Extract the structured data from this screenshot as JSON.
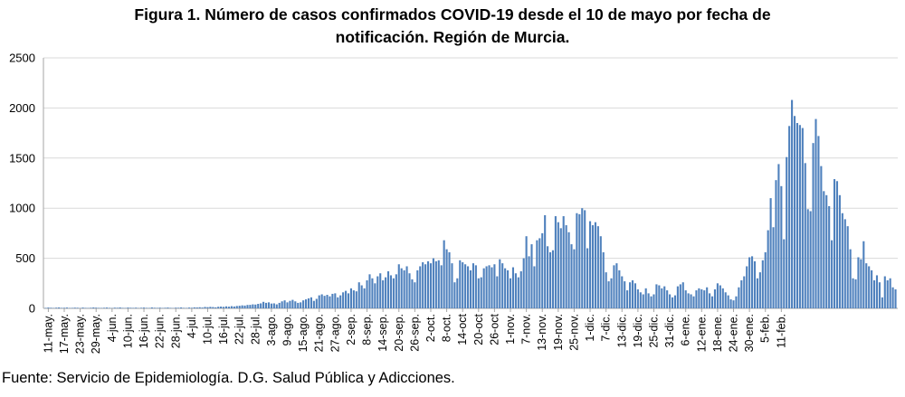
{
  "chart": {
    "title_line1": "Figura 1. Número de casos confirmados COVID-19 desde el 10 de mayo por fecha de",
    "title_line2": "notificación. Región de Murcia.",
    "source": "Fuente: Servicio de Epidemiología. D.G. Salud Pública y Adicciones."
  },
  "chart_data": {
    "type": "bar",
    "title": "Figura 1. Número de casos confirmados COVID-19 desde el 10 de mayo por fecha de notificación. Región de Murcia.",
    "xlabel": "",
    "ylabel": "",
    "ylim": [
      0,
      2500
    ],
    "yticks": [
      0,
      500,
      1000,
      1500,
      2000,
      2500
    ],
    "grid": "horizontal",
    "legend": "none",
    "bar_color": "#4f81bd",
    "x_tick_labels": [
      "11-may.",
      "17-may.",
      "23-may.",
      "29-may.",
      "4-jun.",
      "10-jun.",
      "16-jun.",
      "22-jun.",
      "28-jun.",
      "4-jul.",
      "10-jul.",
      "16-jul.",
      "22-jul.",
      "28-jul.",
      "3-ago.",
      "9-ago.",
      "15-ago.",
      "21-ago.",
      "27-ago.",
      "2-sep.",
      "8-sep.",
      "14-sep.",
      "20-sep.",
      "26-sep.",
      "2-oct.",
      "8-oct.",
      "14-oct",
      "20-oct",
      "26-oct",
      "1-nov.",
      "7-nov.",
      "13-nov.",
      "19-nov.",
      "25-nov.",
      "1-dic.",
      "7-dic.",
      "13-dic.",
      "19-dic.",
      "25-dic.",
      "31-dic.",
      "6-ene.",
      "12-ene.",
      "18-ene.",
      "24-ene.",
      "30-ene.",
      "5-feb.",
      "11-feb."
    ],
    "x_start": "2020-05-10",
    "x_end": "2021-02-11",
    "values": [
      5,
      8,
      6,
      4,
      7,
      9,
      5,
      6,
      8,
      4,
      5,
      7,
      6,
      3,
      8,
      5,
      4,
      6,
      9,
      7,
      5,
      4,
      6,
      8,
      5,
      3,
      7,
      6,
      9,
      5,
      4,
      8,
      6,
      5,
      7,
      3,
      6,
      8,
      5,
      4,
      9,
      6,
      5,
      7,
      4,
      6,
      8,
      5,
      3,
      7,
      6,
      9,
      5,
      4,
      8,
      6,
      10,
      9,
      11,
      8,
      14,
      12,
      15,
      13,
      10,
      16,
      18,
      15,
      20,
      17,
      22,
      19,
      24,
      26,
      30,
      28,
      34,
      35,
      40,
      38,
      45,
      50,
      65,
      55,
      60,
      48,
      50,
      40,
      55,
      70,
      80,
      60,
      75,
      85,
      70,
      55,
      60,
      80,
      90,
      100,
      110,
      75,
      95,
      130,
      140,
      125,
      135,
      120,
      145,
      150,
      110,
      130,
      160,
      175,
      150,
      200,
      180,
      170,
      260,
      230,
      200,
      280,
      340,
      300,
      250,
      320,
      350,
      280,
      310,
      370,
      330,
      300,
      340,
      440,
      400,
      380,
      420,
      350,
      290,
      260,
      380,
      420,
      460,
      440,
      470,
      450,
      500,
      470,
      480,
      430,
      680,
      590,
      560,
      450,
      260,
      300,
      480,
      460,
      440,
      420,
      380,
      450,
      430,
      300,
      310,
      400,
      420,
      430,
      410,
      440,
      320,
      490,
      450,
      400,
      380,
      300,
      410,
      350,
      310,
      370,
      500,
      720,
      520,
      640,
      420,
      680,
      700,
      750,
      930,
      620,
      560,
      580,
      920,
      860,
      800,
      920,
      830,
      760,
      640,
      590,
      950,
      940,
      1000,
      980,
      600,
      870,
      830,
      860,
      820,
      720,
      560,
      360,
      270,
      300,
      430,
      450,
      380,
      320,
      270,
      180,
      260,
      280,
      250,
      190,
      160,
      140,
      200,
      150,
      120,
      140,
      240,
      230,
      200,
      220,
      180,
      140,
      110,
      130,
      220,
      240,
      260,
      180,
      150,
      140,
      120,
      180,
      200,
      190,
      180,
      210,
      150,
      120,
      190,
      250,
      230,
      200,
      160,
      130,
      90,
      80,
      120,
      210,
      280,
      320,
      420,
      510,
      520,
      470,
      300,
      360,
      480,
      560,
      780,
      1100,
      810,
      1280,
      1440,
      1220,
      690,
      1510,
      1820,
      2080,
      1920,
      1850,
      1830,
      1800,
      1450,
      990,
      970,
      1650,
      1890,
      1720,
      1420,
      1170,
      1130,
      1020,
      680,
      1290,
      1270,
      1130,
      950,
      890,
      820,
      590,
      300,
      290,
      510,
      490,
      670,
      450,
      420,
      380,
      280,
      330,
      260,
      110,
      320,
      280,
      300,
      210,
      190
    ]
  }
}
